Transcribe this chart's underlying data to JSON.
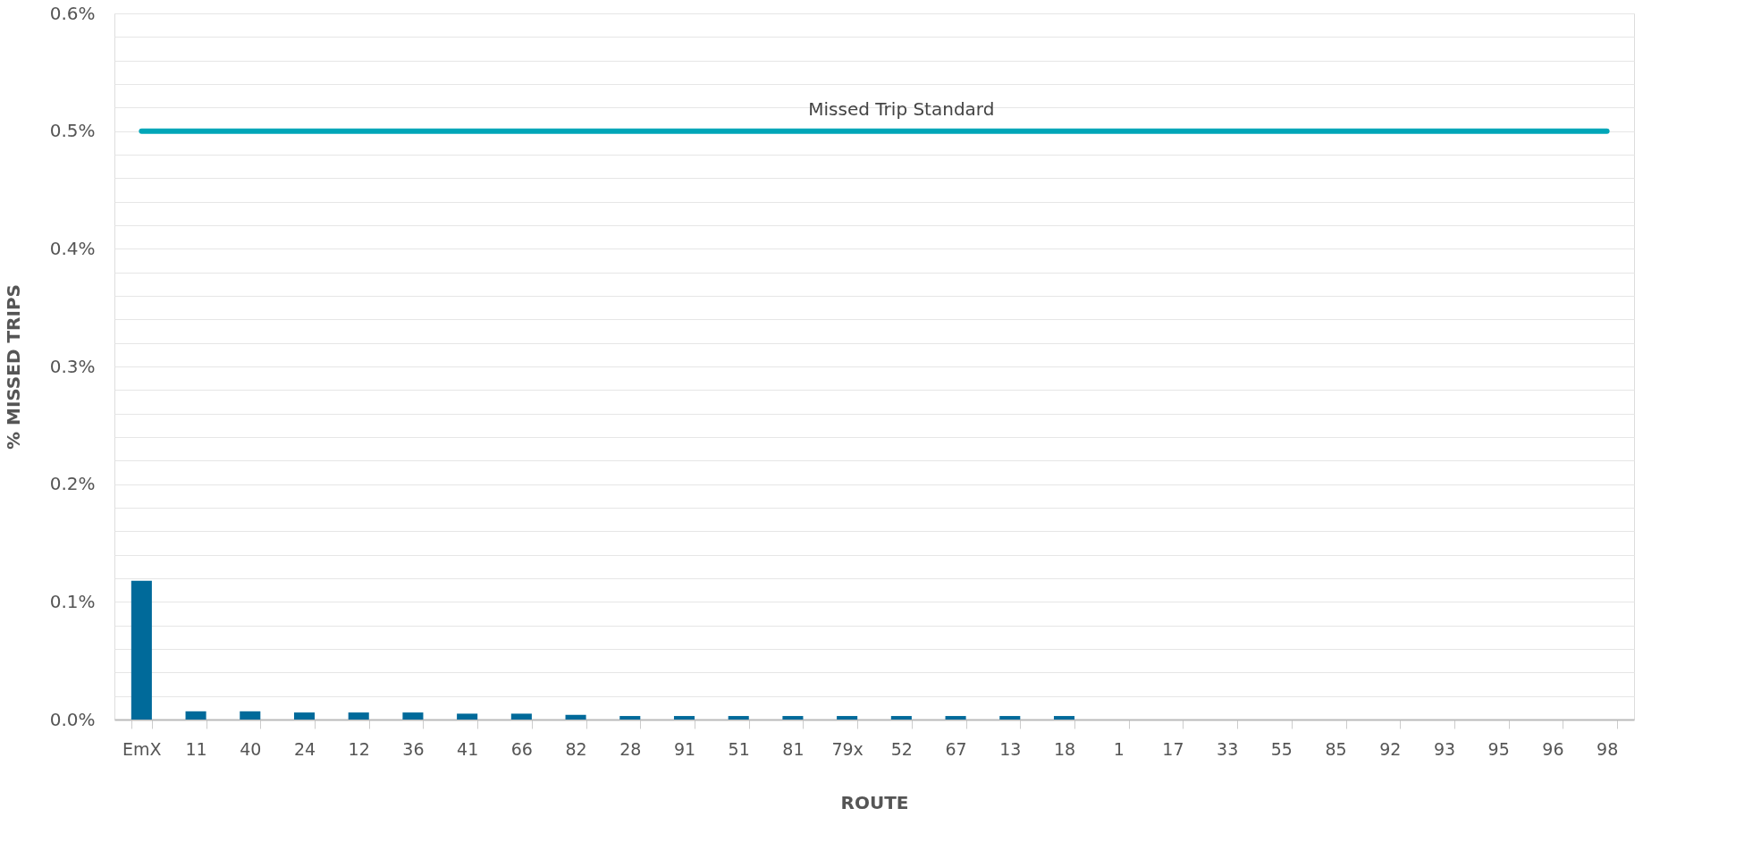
{
  "chart_data": {
    "type": "bar",
    "xlabel": "ROUTE",
    "ylabel": "% MISSED TRIPS",
    "categories": [
      "EmX",
      "11",
      "40",
      "24",
      "12",
      "36",
      "41",
      "66",
      "82",
      "28",
      "91",
      "51",
      "81",
      "79x",
      "52",
      "67",
      "13",
      "18",
      "1",
      "17",
      "33",
      "55",
      "85",
      "92",
      "93",
      "95",
      "96",
      "98"
    ],
    "values": [
      0.118,
      0.007,
      0.007,
      0.006,
      0.006,
      0.006,
      0.005,
      0.005,
      0.004,
      0.003,
      0.003,
      0.003,
      0.003,
      0.003,
      0.003,
      0.003,
      0.003,
      0.003,
      0,
      0,
      0,
      0,
      0,
      0,
      0,
      0,
      0,
      0
    ],
    "color": "#006a9a",
    "ylim": [
      0,
      0.6
    ],
    "yticks": [
      {
        "value": 0,
        "label": "0.0%"
      },
      {
        "value": 0.02,
        "label": null
      },
      {
        "value": 0.04,
        "label": null
      },
      {
        "value": 0.06,
        "label": null
      },
      {
        "value": 0.08,
        "label": null
      },
      {
        "value": 0.1,
        "label": "0.1%"
      },
      {
        "value": 0.12,
        "label": null
      },
      {
        "value": 0.14,
        "label": null
      },
      {
        "value": 0.16,
        "label": null
      },
      {
        "value": 0.18,
        "label": null
      },
      {
        "value": 0.2,
        "label": "0.2%"
      },
      {
        "value": 0.22,
        "label": null
      },
      {
        "value": 0.24,
        "label": null
      },
      {
        "value": 0.26,
        "label": null
      },
      {
        "value": 0.28,
        "label": null
      },
      {
        "value": 0.3,
        "label": "0.3%"
      },
      {
        "value": 0.32,
        "label": null
      },
      {
        "value": 0.34,
        "label": null
      },
      {
        "value": 0.36,
        "label": null
      },
      {
        "value": 0.38,
        "label": null
      },
      {
        "value": 0.4,
        "label": "0.4%"
      },
      {
        "value": 0.42,
        "label": null
      },
      {
        "value": 0.44,
        "label": null
      },
      {
        "value": 0.46,
        "label": null
      },
      {
        "value": 0.48,
        "label": null
      },
      {
        "value": 0.5,
        "label": "0.5%"
      },
      {
        "value": 0.52,
        "label": null
      },
      {
        "value": 0.54,
        "label": null
      },
      {
        "value": 0.56,
        "label": null
      },
      {
        "value": 0.58,
        "label": null
      },
      {
        "value": 0.6,
        "label": "0.6%"
      }
    ],
    "ref_lines": [
      {
        "axis": "y",
        "value": 0.5,
        "label": "Missed Trip Standard",
        "color": "#00a6b8"
      }
    ],
    "grid": "y"
  }
}
